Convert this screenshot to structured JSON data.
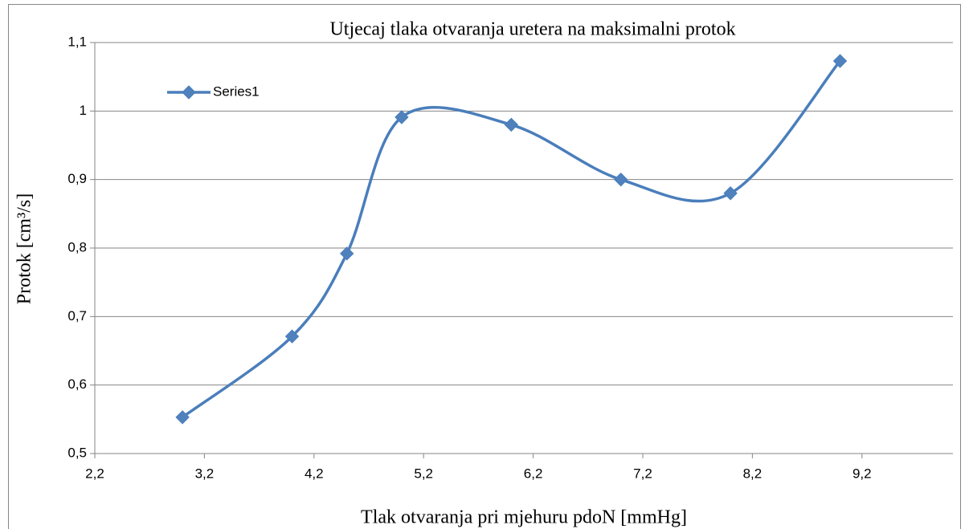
{
  "chart_data": {
    "type": "line",
    "title": "Utjecaj tlaka otvaranja uretera na maksimalni protok",
    "x_label": "Tlak otvaranja pri mjehuru pdoN [mmHg]",
    "y_label": "Protok [cm³/s]",
    "x": [
      3,
      4,
      4.5,
      5,
      6,
      7,
      8,
      9
    ],
    "series": [
      {
        "name": "Series1",
        "color": "#4a7ebb",
        "values": [
          0.553,
          0.671,
          0.792,
          0.991,
          0.98,
          0.9,
          0.88,
          1.073
        ]
      }
    ],
    "smooth": true,
    "xlim": [
      2.2,
      10.03
    ],
    "xticks": [
      {
        "value": 2.2,
        "label": "2,2"
      },
      {
        "value": 3.2,
        "label": "3,2"
      },
      {
        "value": 4.2,
        "label": "4,2"
      },
      {
        "value": 5.2,
        "label": "5,2"
      },
      {
        "value": 6.2,
        "label": "6,2"
      },
      {
        "value": 7.2,
        "label": "7,2"
      },
      {
        "value": 8.2,
        "label": "8,2"
      },
      {
        "value": 9.2,
        "label": "9,2"
      }
    ],
    "ylim": [
      0.5,
      1.1
    ],
    "yticks": [
      {
        "value": 0.5,
        "label": "0,5"
      },
      {
        "value": 0.6,
        "label": "0,6"
      },
      {
        "value": 0.7,
        "label": "0,7"
      },
      {
        "value": 0.8,
        "label": "0,8"
      },
      {
        "value": 0.9,
        "label": "0,9"
      },
      1,
      {
        "value": 1.1,
        "label": "1,1"
      }
    ],
    "grid": true,
    "legend": "top-left"
  }
}
